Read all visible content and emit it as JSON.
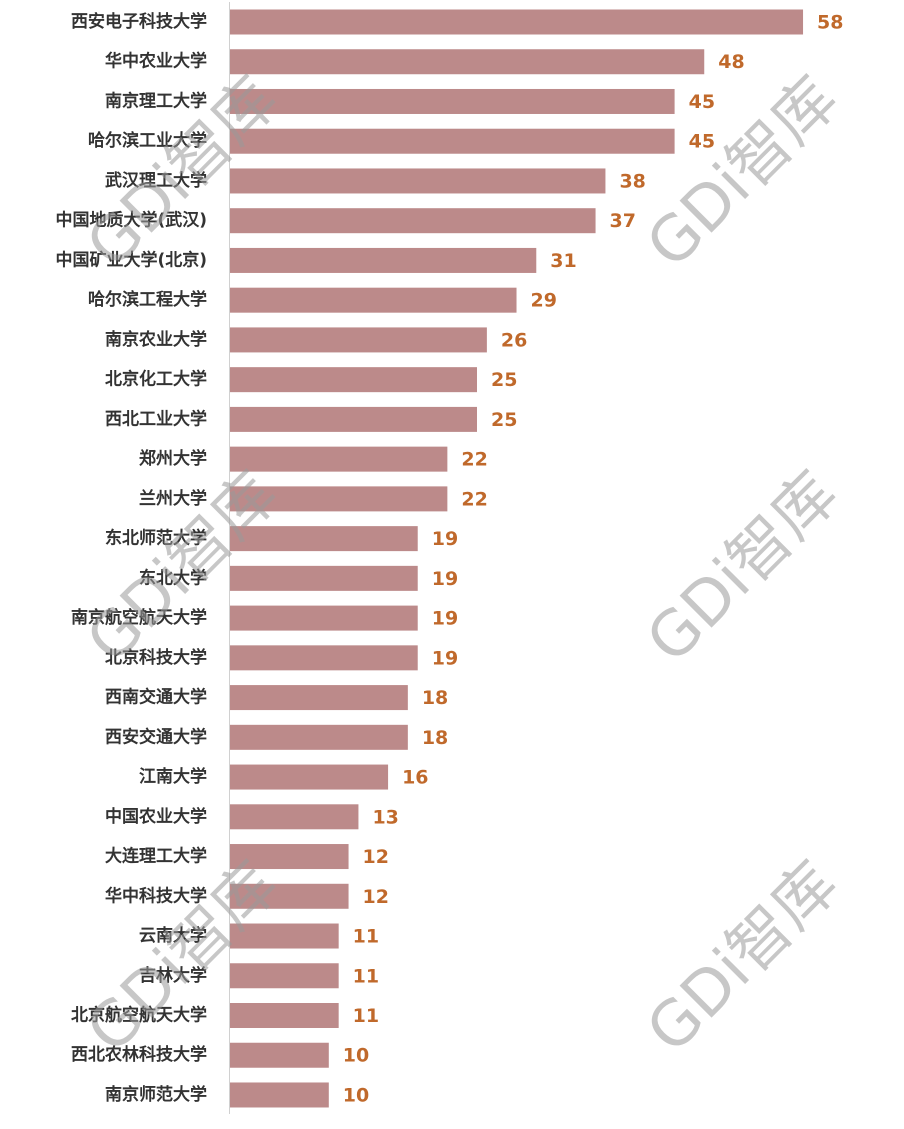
{
  "chart_data": {
    "type": "bar",
    "orientation": "horizontal",
    "color": "#bc8a8a",
    "label_color": "#c0692b",
    "watermark": "GDi智库",
    "categories": [
      "西安电子科技大学",
      "华中农业大学",
      "南京理工大学",
      "哈尔滨工业大学",
      "武汉理工大学",
      "中国地质大学(武汉)",
      "中国矿业大学(北京)",
      "哈尔滨工程大学",
      "南京农业大学",
      "北京化工大学",
      "西北工业大学",
      "郑州大学",
      "兰州大学",
      "东北师范大学",
      "东北大学",
      "南京航空航天大学",
      "北京科技大学",
      "西南交通大学",
      "西安交通大学",
      "江南大学",
      "中国农业大学",
      "大连理工大学",
      "华中科技大学",
      "云南大学",
      "吉林大学",
      "北京航空航天大学",
      "西北农林科技大学",
      "南京师范大学"
    ],
    "values": [
      58,
      48,
      45,
      45,
      38,
      37,
      31,
      29,
      26,
      25,
      25,
      22,
      22,
      19,
      19,
      19,
      19,
      18,
      18,
      16,
      13,
      12,
      12,
      11,
      11,
      11,
      10,
      10
    ]
  }
}
